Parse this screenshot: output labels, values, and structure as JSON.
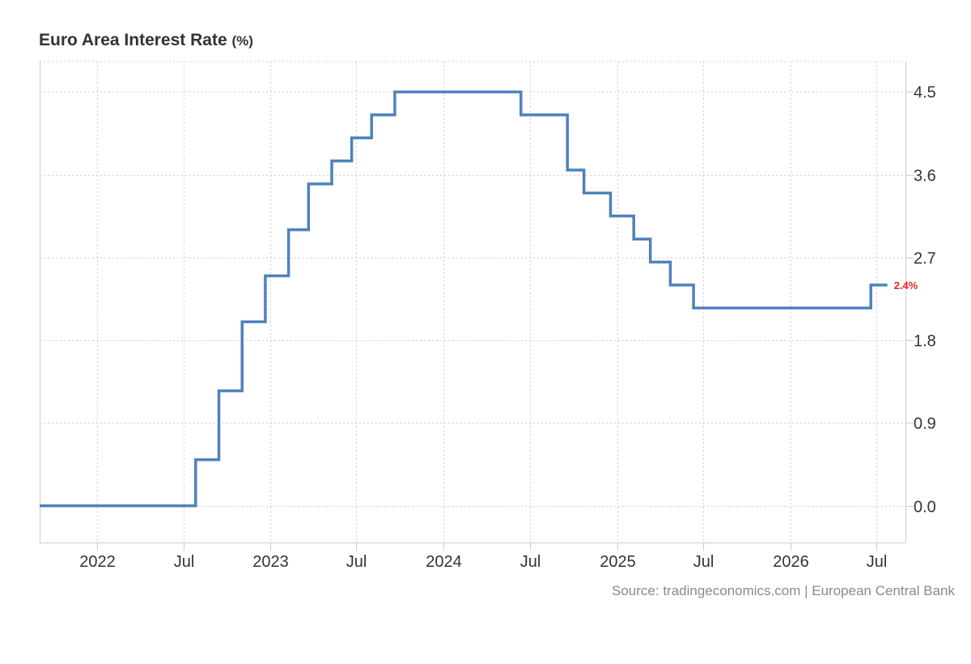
{
  "chart_data": {
    "type": "line",
    "title": "Euro Area Interest Rate",
    "title_unit": "(%)",
    "source": "Source: tradingeconomics.com | European Central Bank",
    "ylim": [
      -0.4,
      4.83
    ],
    "xlim": [
      "2021-09-01",
      "2026-09-01"
    ],
    "y_ticks": [
      {
        "value": 0.0,
        "label": "0.0"
      },
      {
        "value": 0.9,
        "label": "0.9"
      },
      {
        "value": 1.8,
        "label": "1.8"
      },
      {
        "value": 2.7,
        "label": "2.7"
      },
      {
        "value": 3.6,
        "label": "3.6"
      },
      {
        "value": 4.5,
        "label": "4.5"
      }
    ],
    "x_ticks": [
      {
        "date": "2022-01-01",
        "label": "2022"
      },
      {
        "date": "2022-07-01",
        "label": "Jul"
      },
      {
        "date": "2023-01-01",
        "label": "2023"
      },
      {
        "date": "2023-07-01",
        "label": "Jul"
      },
      {
        "date": "2024-01-01",
        "label": "2024"
      },
      {
        "date": "2024-07-01",
        "label": "Jul"
      },
      {
        "date": "2025-01-01",
        "label": "2025"
      },
      {
        "date": "2025-07-01",
        "label": "Jul"
      },
      {
        "date": "2026-01-01",
        "label": "2026"
      },
      {
        "date": "2026-07-01",
        "label": "Jul"
      }
    ],
    "grid": true,
    "line_color": "#4f81bd",
    "last_label": {
      "text": "2.4%",
      "value": 2.4,
      "color": "#e8242f"
    },
    "series": [
      {
        "step": true,
        "points": [
          {
            "date": "2021-09-01",
            "value": 0.0
          },
          {
            "date": "2022-07-27",
            "value": 0.5
          },
          {
            "date": "2022-09-14",
            "value": 1.25
          },
          {
            "date": "2022-11-02",
            "value": 2.0
          },
          {
            "date": "2022-12-21",
            "value": 2.5
          },
          {
            "date": "2023-02-08",
            "value": 3.0
          },
          {
            "date": "2023-03-22",
            "value": 3.5
          },
          {
            "date": "2023-05-10",
            "value": 3.75
          },
          {
            "date": "2023-06-21",
            "value": 4.0
          },
          {
            "date": "2023-08-02",
            "value": 4.25
          },
          {
            "date": "2023-09-20",
            "value": 4.5
          },
          {
            "date": "2024-06-12",
            "value": 4.25
          },
          {
            "date": "2024-09-18",
            "value": 3.65
          },
          {
            "date": "2024-10-23",
            "value": 3.4
          },
          {
            "date": "2024-12-18",
            "value": 3.15
          },
          {
            "date": "2025-02-05",
            "value": 2.9
          },
          {
            "date": "2025-03-12",
            "value": 2.65
          },
          {
            "date": "2025-04-23",
            "value": 2.4
          },
          {
            "date": "2025-06-11",
            "value": 2.15
          },
          {
            "date": "2026-06-20",
            "value": 2.4
          },
          {
            "date": "2026-07-25",
            "value": 2.4
          }
        ]
      }
    ]
  }
}
